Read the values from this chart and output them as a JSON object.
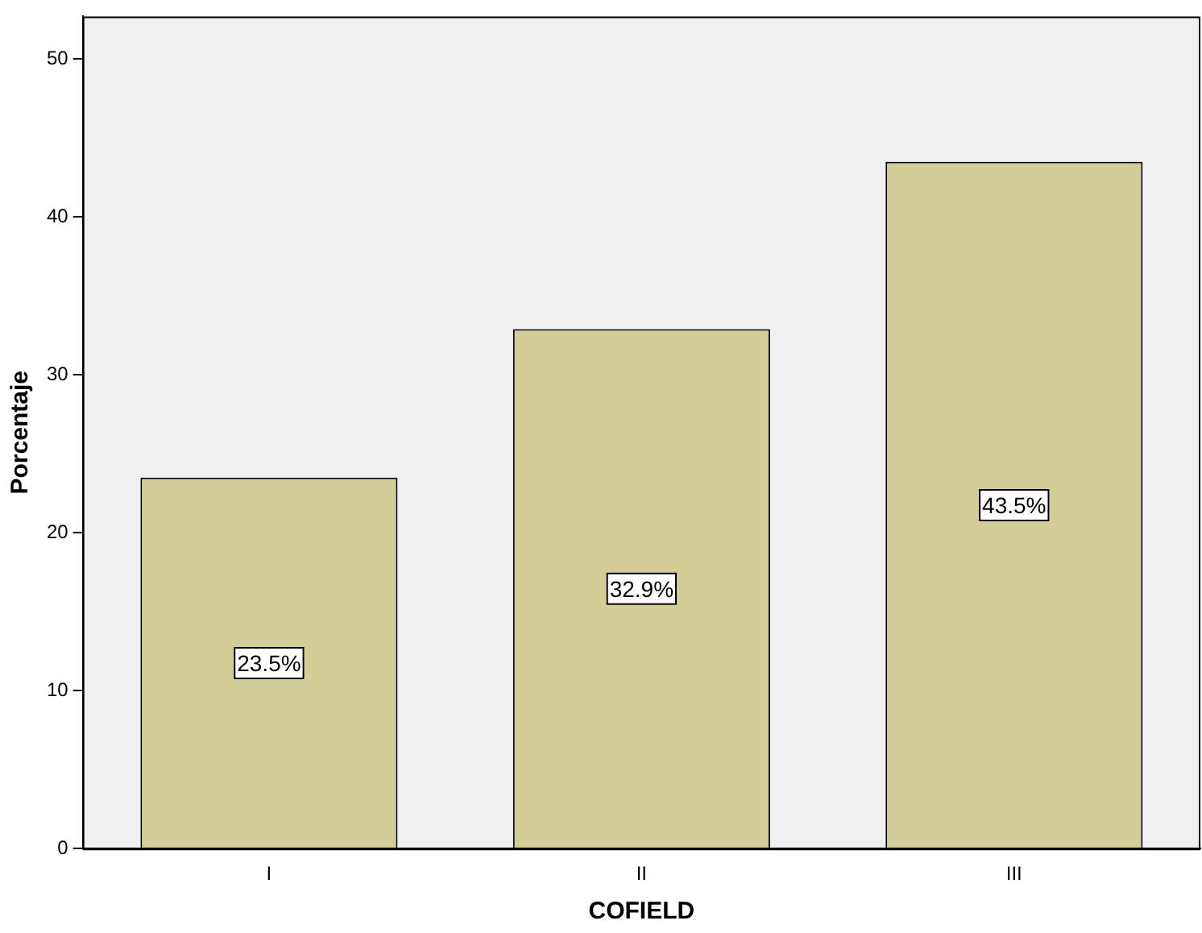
{
  "chart_data": {
    "type": "bar",
    "xlabel": "COFIELD",
    "ylabel": "Porcentaje",
    "categories": [
      "I",
      "II",
      "III"
    ],
    "values": [
      23.5,
      32.9,
      43.5
    ],
    "value_labels": [
      "23.5%",
      "32.9%",
      "43.5%"
    ],
    "color": "#d3ce98",
    "ylim": [
      0,
      52.7
    ],
    "yticks": [
      0,
      10,
      20,
      30,
      40,
      50
    ],
    "grid": false,
    "legend": false
  }
}
